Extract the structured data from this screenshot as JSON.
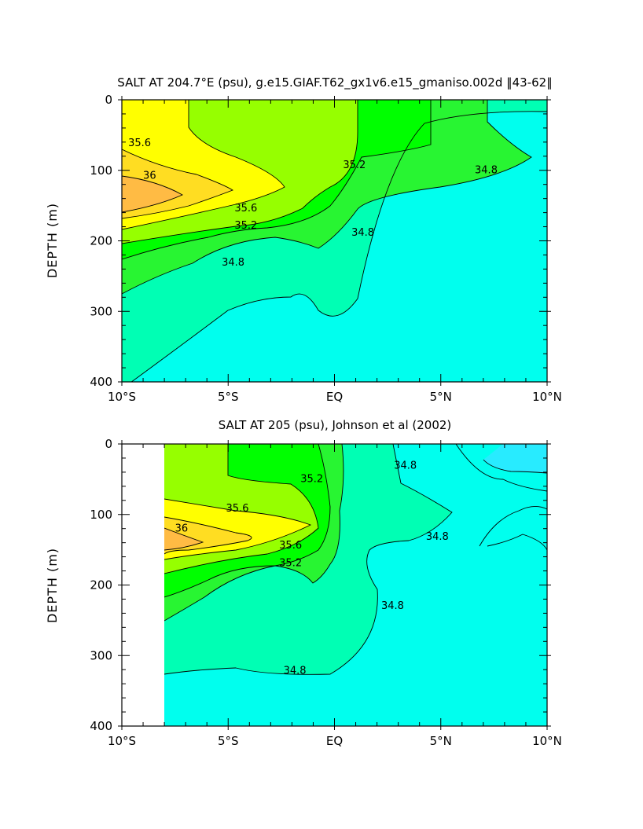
{
  "chart_data": [
    {
      "type": "contour",
      "title": "SALT AT 204.7°E (psu), g.e15.GIAF.T62_gx1v6.e15_gmaniso.002d ‖43-62‖",
      "xlabel": "",
      "ylabel": "DEPTH (m)",
      "xlim": [
        -10,
        10
      ],
      "ylim": [
        400,
        0
      ],
      "x_ticks": [
        {
          "value": -10,
          "label": "10°S"
        },
        {
          "value": -5,
          "label": "5°S"
        },
        {
          "value": 0,
          "label": "EQ"
        },
        {
          "value": 5,
          "label": "5°N"
        },
        {
          "value": 10,
          "label": "10°N"
        }
      ],
      "y_ticks": [
        0,
        100,
        200,
        300,
        400
      ],
      "contour_interval": 0.2,
      "colors": {
        "<34.8": "#00ffee",
        "34.8-35.0": "#00ffb4",
        "35.0-35.2": "#28f532",
        "35.2-35.4": "#00ff00",
        "35.4-35.6": "#96ff00",
        "35.6-35.8": "#ffff00",
        "35.8-36.0": "#ffdd22",
        ">36.0": "#ffbb44"
      },
      "contour_labels": [
        {
          "text": "35.6",
          "x": -9.7,
          "y": 66
        },
        {
          "text": "36",
          "x": -9.0,
          "y": 112
        },
        {
          "text": "35.6",
          "x": -4.7,
          "y": 158
        },
        {
          "text": "35.2",
          "x": -4.7,
          "y": 183
        },
        {
          "text": "34.8",
          "x": -5.3,
          "y": 235
        },
        {
          "text": "35.2",
          "x": 0.4,
          "y": 97
        },
        {
          "text": "34.8",
          "x": 0.8,
          "y": 193
        },
        {
          "text": "34.8",
          "x": 6.6,
          "y": 104
        }
      ]
    },
    {
      "type": "contour",
      "title": "SALT AT 205 (psu), Johnson et al (2002)",
      "xlabel": "",
      "ylabel": "DEPTH (m)",
      "xlim": [
        -10,
        10
      ],
      "ylim": [
        400,
        0
      ],
      "data_start_x": -8,
      "x_ticks": [
        {
          "value": -10,
          "label": "10°S"
        },
        {
          "value": -5,
          "label": "5°S"
        },
        {
          "value": 0,
          "label": "EQ"
        },
        {
          "value": 5,
          "label": "5°N"
        },
        {
          "value": 10,
          "label": "10°N"
        }
      ],
      "y_ticks": [
        0,
        100,
        200,
        300,
        400
      ],
      "contour_interval": 0.2,
      "colors": {
        "<34.8": "#00ffee",
        "34.8-35.0": "#00ffb4",
        "35.0-35.2": "#28f532",
        "35.2-35.4": "#00ff00",
        "35.4-35.6": "#96ff00",
        "35.6-35.8": "#ffff00",
        "35.8-36.0": "#ffdd22",
        ">36.0": "#ffbb44",
        "<34.6": "#28ebff"
      },
      "contour_labels": [
        {
          "text": "35.6",
          "x": -5.1,
          "y": 96
        },
        {
          "text": "36",
          "x": -7.5,
          "y": 124
        },
        {
          "text": "35.6",
          "x": -2.6,
          "y": 148
        },
        {
          "text": "35.2",
          "x": -2.6,
          "y": 173
        },
        {
          "text": "35.2",
          "x": -1.6,
          "y": 54
        },
        {
          "text": "34.8",
          "x": 2.8,
          "y": 35
        },
        {
          "text": "34.8",
          "x": 4.3,
          "y": 136
        },
        {
          "text": "34.8",
          "x": 2.2,
          "y": 234
        },
        {
          "text": "34.8",
          "x": -2.4,
          "y": 326
        }
      ]
    }
  ]
}
